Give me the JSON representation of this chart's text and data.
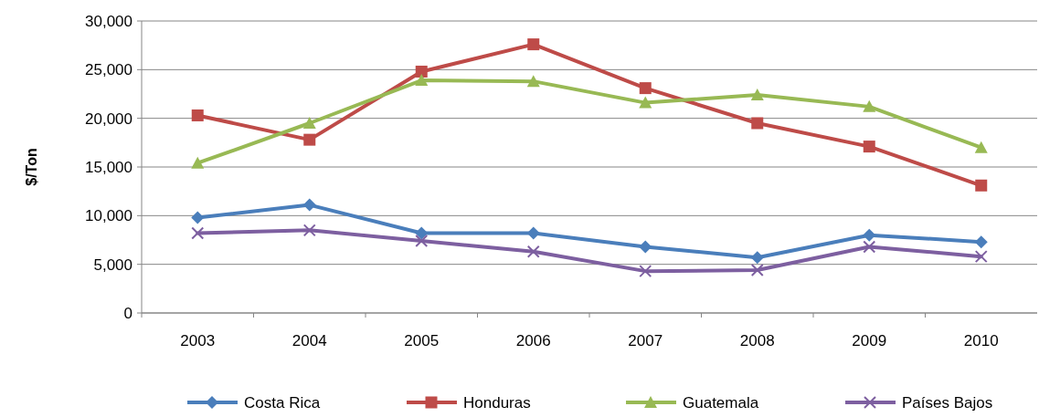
{
  "chart_data": {
    "type": "line",
    "ylabel": "$/Ton",
    "categories": [
      "2003",
      "2004",
      "2005",
      "2006",
      "2007",
      "2008",
      "2009",
      "2010"
    ],
    "ylim": [
      0,
      30000
    ],
    "yticks": [
      {
        "value": 0,
        "label": "0"
      },
      {
        "value": 5000,
        "label": "5,000"
      },
      {
        "value": 10000,
        "label": "10,000"
      },
      {
        "value": 15000,
        "label": "15,000"
      },
      {
        "value": 20000,
        "label": "20,000"
      },
      {
        "value": 25000,
        "label": "25,000"
      },
      {
        "value": 30000,
        "label": "30,000"
      }
    ],
    "grid": "y",
    "legend": "bottom",
    "line_style": "solid",
    "series": [
      {
        "name": "Costa Rica",
        "color": "#4a7ebb",
        "marker": "diamond",
        "values": [
          9800,
          11100,
          8200,
          8200,
          6800,
          5700,
          8000,
          7300
        ]
      },
      {
        "name": "Honduras",
        "color": "#be4b48",
        "marker": "square",
        "values": [
          20300,
          17800,
          24800,
          27600,
          23100,
          19500,
          17100,
          13100
        ]
      },
      {
        "name": "Guatemala",
        "color": "#98b954",
        "marker": "triangle",
        "values": [
          15400,
          19500,
          23900,
          23800,
          21600,
          22400,
          21200,
          17000
        ]
      },
      {
        "name": "Países Bajos",
        "color": "#7d5fa0",
        "marker": "cross",
        "values": [
          8200,
          8500,
          7400,
          6300,
          4300,
          4400,
          6800,
          5800
        ]
      }
    ]
  }
}
